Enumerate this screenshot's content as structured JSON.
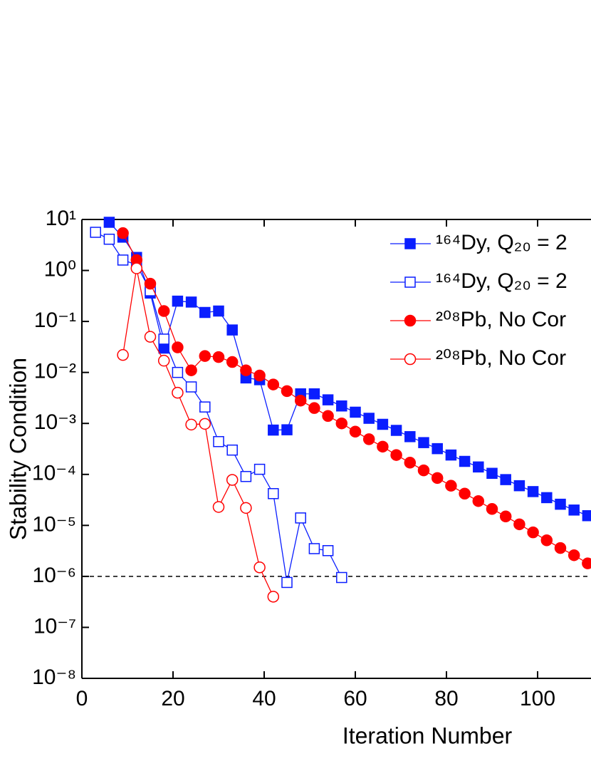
{
  "chart_data": {
    "type": "line",
    "x_label": "Iteration Number",
    "y_label": "Stability Condition",
    "log_y": true,
    "xlim": [
      0,
      112
    ],
    "ylim": [
      1e-08,
      10
    ],
    "xticks": [
      0,
      20,
      40,
      60,
      80,
      100
    ],
    "yticks": [
      {
        "value": 1e-08,
        "label": "10⁻⁸"
      },
      {
        "value": 1e-07,
        "label": "10⁻⁷"
      },
      {
        "value": 1e-06,
        "label": "10⁻⁶"
      },
      {
        "value": 1e-05,
        "label": "10⁻⁵"
      },
      {
        "value": 0.0001,
        "label": "10⁻⁴"
      },
      {
        "value": 0.001,
        "label": "10⁻³"
      },
      {
        "value": 0.01,
        "label": "10⁻²"
      },
      {
        "value": 0.1,
        "label": "10⁻¹"
      },
      {
        "value": 1,
        "label": "10⁰"
      },
      {
        "value": 10,
        "label": "10¹"
      }
    ],
    "threshold": 1e-06,
    "legend": "top-right",
    "series": [
      {
        "name": "¹⁶⁴Dy, Q₂₀ = 2",
        "color": "#0a1eff",
        "marker": "square",
        "filled": true,
        "x": [
          6,
          9,
          12,
          15,
          18,
          21,
          24,
          27,
          30,
          33,
          36,
          39,
          42,
          45,
          48,
          51,
          54,
          57,
          60,
          63,
          66,
          69,
          72,
          75,
          78,
          81,
          84,
          87,
          90,
          93,
          96,
          99,
          102,
          105,
          108,
          111
        ],
        "values": [
          8.8,
          4.5,
          1.8,
          0.36,
          0.03,
          0.25,
          0.24,
          0.15,
          0.16,
          0.068,
          0.0078,
          0.0072,
          0.00074,
          0.00075,
          0.0038,
          0.0038,
          0.0029,
          0.0022,
          0.00166,
          0.00126,
          0.00096,
          0.00073,
          0.00055,
          0.00042,
          0.00032,
          0.00024,
          0.00018,
          0.00014,
          0.000105,
          7.9e-05,
          6e-05,
          4.6e-05,
          3.5e-05,
          2.6e-05,
          2e-05,
          1.55e-05
        ]
      },
      {
        "name": "¹⁶⁴Dy, Q₂₀ = 2",
        "color": "#0a1eff",
        "marker": "square",
        "filled": false,
        "x": [
          3,
          6,
          9,
          12,
          15,
          18,
          21,
          24,
          27,
          30,
          33,
          36,
          39,
          42,
          45,
          48,
          51,
          54,
          57
        ],
        "values": [
          5.6,
          4.1,
          1.6,
          1.3,
          0.4,
          0.045,
          0.01,
          0.0052,
          0.0021,
          0.00044,
          0.0003,
          9.1e-05,
          0.000126,
          4.2e-05,
          7.6e-07,
          1.4e-05,
          3.5e-06,
          3.2e-06,
          9.5e-07
        ]
      },
      {
        "name": "²⁰⁸Pb, No Cor",
        "color": "#ff0000",
        "marker": "circle",
        "filled": true,
        "x": [
          9,
          12,
          15,
          18,
          21,
          24,
          27,
          30,
          33,
          36,
          39,
          42,
          45,
          48,
          51,
          54,
          57,
          60,
          63,
          66,
          69,
          72,
          75,
          78,
          81,
          84,
          87,
          90,
          93,
          96,
          99,
          102,
          105,
          108,
          111
        ],
        "values": [
          5.4,
          1.6,
          0.55,
          0.16,
          0.031,
          0.011,
          0.021,
          0.02,
          0.016,
          0.011,
          0.0087,
          0.0058,
          0.0043,
          0.0028,
          0.002,
          0.0014,
          0.001,
          0.00069,
          0.00049,
          0.00035,
          0.00024,
          0.00017,
          0.00012,
          8.5e-05,
          6e-05,
          4.2e-05,
          3e-05,
          2.1e-05,
          1.5e-05,
          1.05e-05,
          7.3e-06,
          5.1e-06,
          3.6e-06,
          2.6e-06,
          1.8e-06
        ]
      },
      {
        "name": "²⁰⁸Pb, No Cor",
        "color": "#ff0000",
        "marker": "circle",
        "filled": false,
        "x": [
          9,
          12,
          15,
          18,
          21,
          24,
          27,
          30,
          33,
          36,
          39,
          42
        ],
        "values": [
          0.022,
          1.1,
          0.05,
          0.017,
          0.004,
          0.00095,
          0.00098,
          2.3e-05,
          7.8e-05,
          2.2e-05,
          1.5e-06,
          4e-07
        ]
      }
    ]
  }
}
